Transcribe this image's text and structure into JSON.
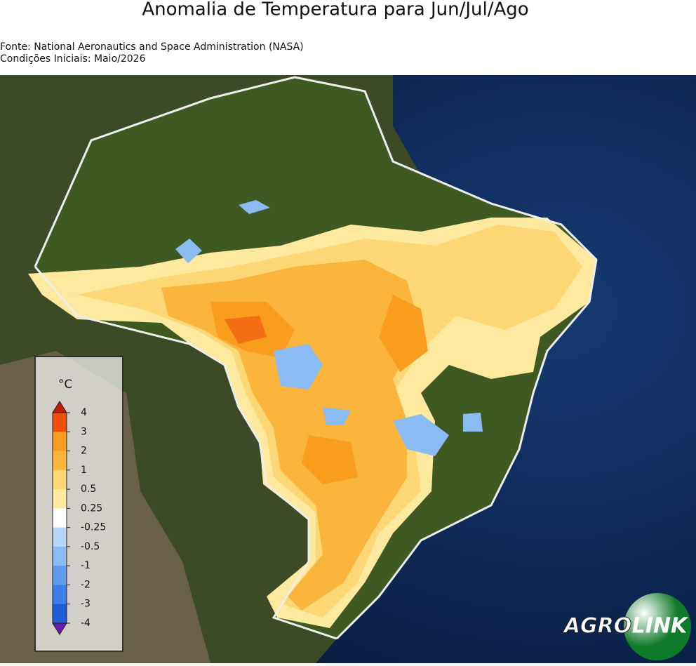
{
  "header": {
    "title": "Anomalia de Temperatura para Jun/Jul/Ago",
    "source": "Fonte: National Aeronautics and Space Administration (NASA)",
    "initial_conditions": "Condições Iniciais: Maio/2026"
  },
  "legend": {
    "unit": "°C",
    "ticks": [
      4,
      3,
      2,
      1,
      0.5,
      0.25,
      -0.25,
      -0.5,
      -1,
      -2,
      -3,
      -4
    ],
    "colors": [
      "#f0500c",
      "#f99d1f",
      "#fbb53c",
      "#fdd675",
      "#fee99e",
      "#ffffff",
      "#b6d7f7",
      "#8bbbf3",
      "#5f9cee",
      "#3c7fe8",
      "#1f5cd6"
    ],
    "over_color": "#c41c06",
    "under_color": "#6a1ab0"
  },
  "logo": {
    "left": "AGRO",
    "right": "LINK"
  }
}
